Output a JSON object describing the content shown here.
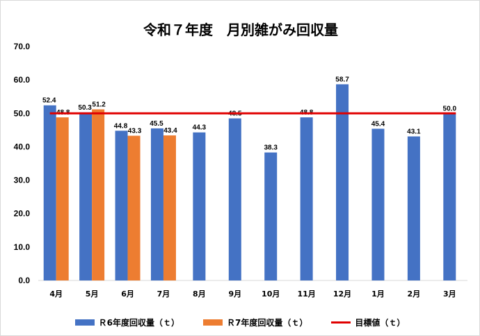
{
  "chart_data": {
    "type": "bar",
    "title": "令和７年度　月別雑がみ回収量",
    "categories": [
      "4月",
      "5月",
      "6月",
      "7月",
      "8月",
      "9月",
      "10月",
      "11月",
      "12月",
      "1月",
      "2月",
      "3月"
    ],
    "series": [
      {
        "name": "Ｒ6年度回収量（ｔ）",
        "values": [
          52.4,
          50.3,
          44.8,
          45.5,
          44.3,
          48.5,
          38.3,
          48.8,
          58.7,
          45.4,
          43.1,
          50.0
        ],
        "color": "#4472c4"
      },
      {
        "name": "Ｒ7年度回収量（ｔ）",
        "values": [
          48.8,
          51.2,
          43.3,
          43.4,
          null,
          null,
          null,
          null,
          null,
          null,
          null,
          null
        ],
        "color": "#ed7d31"
      }
    ],
    "target": {
      "name": "目標値（ｔ）",
      "value": 50.0,
      "color": "#e00000"
    },
    "ylim": [
      0,
      70
    ],
    "yticks": [
      "0.0",
      "10.0",
      "20.0",
      "30.0",
      "40.0",
      "50.0",
      "60.0",
      "70.0"
    ],
    "grid": false,
    "legend_position": "bottom"
  }
}
